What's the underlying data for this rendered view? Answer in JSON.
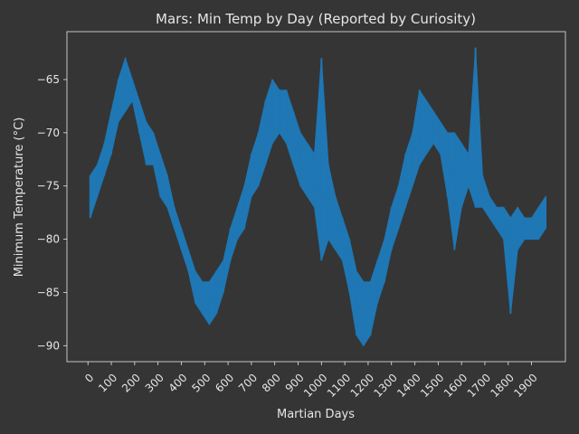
{
  "chart_data": {
    "type": "line",
    "title": "Mars: Min Temp by Day (Reported by Curiosity)",
    "xlabel": "Martian Days",
    "ylabel": "Minimum Temperature (°C)",
    "xlim": [
      -90,
      2045
    ],
    "ylim": [
      -91.5,
      -60.5
    ],
    "xticks": [
      0,
      100,
      200,
      300,
      400,
      500,
      600,
      700,
      800,
      900,
      1000,
      1100,
      1200,
      1300,
      1400,
      1500,
      1600,
      1700,
      1800,
      1900
    ],
    "yticks": [
      -65,
      -70,
      -75,
      -80,
      -85,
      -90
    ],
    "grid": false,
    "legend": false,
    "series": [
      {
        "color": "#1f77b4",
        "x": [
          10,
          40,
          70,
          100,
          130,
          160,
          190,
          220,
          250,
          280,
          310,
          340,
          370,
          400,
          430,
          460,
          490,
          520,
          550,
          580,
          610,
          640,
          670,
          700,
          730,
          760,
          790,
          820,
          850,
          880,
          910,
          940,
          970,
          1000,
          1030,
          1060,
          1090,
          1120,
          1150,
          1180,
          1210,
          1240,
          1270,
          1300,
          1330,
          1360,
          1390,
          1420,
          1450,
          1480,
          1510,
          1540,
          1570,
          1600,
          1630,
          1660,
          1690,
          1720,
          1750,
          1780,
          1810,
          1840,
          1870,
          1900,
          1930,
          1960
        ],
        "y_min": [
          -78,
          -76,
          -74,
          -72,
          -69,
          -68,
          -67,
          -70,
          -73,
          -73,
          -76,
          -77,
          -79,
          -81,
          -83,
          -86,
          -87,
          -88,
          -87,
          -85,
          -82,
          -80,
          -79,
          -76,
          -75,
          -73,
          -71,
          -70,
          -71,
          -73,
          -75,
          -76,
          -77,
          -82,
          -80,
          -81,
          -82,
          -85,
          -89,
          -90,
          -89,
          -86,
          -84,
          -81,
          -79,
          -77,
          -75,
          -73,
          -72,
          -71,
          -72,
          -76,
          -81,
          -77,
          -75,
          -77,
          -77,
          -78,
          -79,
          -80,
          -87,
          -81,
          -80,
          -80,
          -80,
          -79
        ],
        "y_max": [
          -74,
          -73,
          -71,
          -68,
          -65,
          -63,
          -65,
          -67,
          -69,
          -70,
          -72,
          -74,
          -77,
          -79,
          -81,
          -83,
          -84,
          -84,
          -83,
          -82,
          -79,
          -77,
          -75,
          -72,
          -70,
          -67,
          -65,
          -66,
          -66,
          -68,
          -70,
          -71,
          -72,
          -63,
          -73,
          -76,
          -78,
          -80,
          -83,
          -84,
          -84,
          -82,
          -80,
          -77,
          -75,
          -72,
          -70,
          -66,
          -67,
          -68,
          -69,
          -70,
          -70,
          -71,
          -72,
          -62,
          -74,
          -76,
          -77,
          -77,
          -78,
          -77,
          -78,
          -78,
          -77,
          -76
        ],
        "y_mid": [
          -75,
          -74.5,
          -72.5,
          -69.5,
          -66.5,
          -65.5,
          -66.5,
          -68.5,
          -71,
          -71.5,
          -74,
          -75.5,
          -78,
          -80,
          -82,
          -84.5,
          -85.5,
          -86,
          -85,
          -83.5,
          -80.5,
          -78.5,
          -77,
          -74,
          -72.5,
          -70,
          -68,
          -68,
          -68.5,
          -70.5,
          -72.5,
          -73.5,
          -74.5,
          -76,
          -76.5,
          -78.5,
          -80,
          -82.5,
          -86,
          -87,
          -86.5,
          -84,
          -82,
          -79,
          -77,
          -74.5,
          -72.5,
          -70.5,
          -69.5,
          -69.5,
          -70.5,
          -73,
          -74.5,
          -74,
          -73.5,
          -75,
          -75.5,
          -77,
          -78,
          -78.5,
          -80,
          -79,
          -79,
          -79,
          -78.5,
          -77.5
        ]
      }
    ]
  }
}
